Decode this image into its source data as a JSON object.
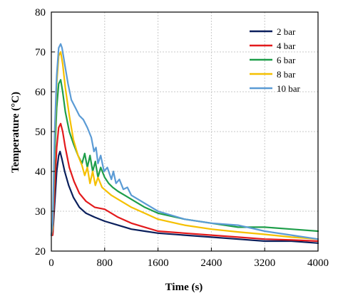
{
  "chart_data": {
    "type": "line",
    "xlabel": "Time (s)",
    "ylabel": "Temperature (°C)",
    "xlim": [
      0,
      4000
    ],
    "ylim": [
      20,
      80
    ],
    "xticks": [
      0,
      800,
      1600,
      2400,
      3200,
      4000
    ],
    "yticks": [
      20,
      30,
      40,
      50,
      60,
      70,
      80
    ],
    "grid": true,
    "legend_position": "top-right",
    "series": [
      {
        "name": "2 bar",
        "color": "#0a1f5c",
        "x": [
          0,
          20,
          50,
          80,
          110,
          130,
          160,
          200,
          260,
          330,
          420,
          520,
          650,
          800,
          1000,
          1200,
          1400,
          1600,
          2000,
          2400,
          2800,
          3200,
          3600,
          4000
        ],
        "y": [
          24,
          24,
          32,
          40,
          44,
          45,
          43,
          40,
          36.5,
          33.5,
          31,
          29.5,
          28.5,
          27.5,
          26.5,
          25.5,
          25,
          24.5,
          24,
          23.5,
          23,
          22.5,
          22.5,
          22
        ]
      },
      {
        "name": "4 bar",
        "color": "#e31a1c",
        "x": [
          0,
          20,
          50,
          80,
          110,
          140,
          170,
          210,
          270,
          340,
          420,
          520,
          650,
          800,
          900,
          1000,
          1200,
          1400,
          1600,
          2000,
          2400,
          2800,
          3200,
          3600,
          4000
        ],
        "y": [
          24,
          24,
          36,
          46,
          51,
          52,
          50,
          46,
          41,
          37.5,
          34.5,
          32.5,
          31,
          30.5,
          29.5,
          28.5,
          27,
          26,
          25,
          24.5,
          24,
          23.5,
          23,
          22.8,
          22.5
        ]
      },
      {
        "name": "6 bar",
        "color": "#1e9e4a",
        "x": [
          0,
          20,
          50,
          80,
          110,
          140,
          170,
          210,
          270,
          330,
          400,
          460,
          500,
          540,
          580,
          620,
          660,
          700,
          740,
          800,
          860,
          920,
          1000,
          1100,
          1200,
          1400,
          1600,
          2000,
          2400,
          2800,
          3200,
          3600,
          4000
        ],
        "y": [
          24,
          26,
          44,
          56,
          62,
          63,
          60,
          55,
          50,
          47,
          44,
          42,
          44.5,
          41,
          44,
          40,
          42.5,
          38.5,
          41,
          38.5,
          37,
          36,
          35,
          34,
          33,
          31,
          29.5,
          28,
          27,
          26,
          26,
          25.5,
          25
        ]
      },
      {
        "name": "8 bar",
        "color": "#f5c000",
        "x": [
          0,
          20,
          50,
          80,
          110,
          140,
          170,
          210,
          270,
          330,
          400,
          460,
          500,
          540,
          580,
          620,
          660,
          700,
          760,
          830,
          900,
          1000,
          1100,
          1200,
          1400,
          1600,
          2000,
          2400,
          2800,
          3200,
          3600,
          4000
        ],
        "y": [
          24,
          26,
          48,
          62,
          69,
          70,
          67,
          61,
          54,
          48,
          44,
          41.5,
          39,
          41,
          37,
          40,
          36.5,
          38.5,
          36,
          35,
          34,
          33,
          32,
          31,
          29.5,
          28,
          26.5,
          25.5,
          24.8,
          24.2,
          23.5,
          23
        ]
      },
      {
        "name": "10 bar",
        "color": "#5b9bd5",
        "x": [
          0,
          20,
          50,
          80,
          110,
          140,
          160,
          200,
          250,
          300,
          360,
          420,
          480,
          540,
          600,
          640,
          670,
          700,
          740,
          790,
          840,
          900,
          930,
          970,
          1020,
          1080,
          1140,
          1200,
          1300,
          1400,
          1600,
          2000,
          2400,
          2800,
          3200,
          3600,
          4000
        ],
        "y": [
          24,
          27,
          50,
          64,
          71,
          72,
          71,
          67,
          62,
          58,
          56,
          54,
          53,
          51,
          48.5,
          45,
          46,
          42,
          44,
          40,
          41,
          38,
          40,
          37,
          38,
          35.5,
          36,
          34,
          33,
          32,
          30,
          28,
          27,
          26.5,
          25,
          24,
          23
        ]
      }
    ]
  }
}
